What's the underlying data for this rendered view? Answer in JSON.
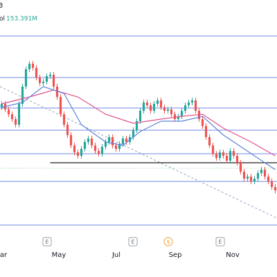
{
  "chart_data": {
    "type": "candlestick",
    "header": "3",
    "volume_prefix": "ol",
    "volume_value": "153.391M",
    "xlim": [
      -0.5,
      79.5
    ],
    "ylim": [
      0,
      350
    ],
    "up_color": "#26a69a",
    "down_color": "#ef5350",
    "open": [
      195,
      200,
      192,
      185,
      178,
      170,
      200,
      225,
      250,
      258,
      252,
      238,
      230,
      232,
      240,
      242,
      225,
      210,
      185,
      170,
      155,
      140,
      130,
      125,
      135,
      145,
      150,
      140,
      132,
      128,
      138,
      145,
      152,
      140,
      135,
      142,
      150,
      145,
      152,
      162,
      175,
      190,
      202,
      198,
      190,
      200,
      205,
      195,
      190,
      192,
      185,
      178,
      182,
      190,
      198,
      202,
      205,
      190,
      178,
      168,
      152,
      140,
      128,
      122,
      130,
      125,
      118,
      132,
      125,
      115,
      102,
      92,
      95,
      88,
      92,
      100,
      105,
      95,
      88,
      80
    ],
    "high": [
      204,
      204,
      196,
      189,
      182,
      204,
      229,
      254,
      262,
      262,
      256,
      242,
      236,
      244,
      246,
      246,
      229,
      214,
      189,
      174,
      159,
      144,
      134,
      139,
      149,
      154,
      154,
      144,
      136,
      142,
      149,
      156,
      156,
      144,
      146,
      154,
      154,
      156,
      166,
      179,
      194,
      206,
      206,
      202,
      204,
      209,
      209,
      199,
      196,
      196,
      189,
      186,
      194,
      202,
      206,
      209,
      209,
      194,
      182,
      172,
      156,
      144,
      132,
      134,
      134,
      129,
      136,
      136,
      129,
      119,
      106,
      99,
      99,
      96,
      104,
      109,
      109,
      99,
      92,
      84
    ],
    "low": [
      191,
      188,
      181,
      174,
      166,
      166,
      196,
      221,
      246,
      248,
      234,
      226,
      226,
      228,
      236,
      221,
      206,
      181,
      166,
      151,
      136,
      126,
      121,
      121,
      131,
      141,
      136,
      128,
      124,
      124,
      134,
      141,
      136,
      131,
      131,
      138,
      141,
      141,
      148,
      158,
      171,
      186,
      194,
      186,
      186,
      196,
      191,
      186,
      186,
      181,
      174,
      174,
      178,
      186,
      194,
      198,
      186,
      174,
      164,
      148,
      136,
      124,
      118,
      118,
      121,
      114,
      114,
      121,
      111,
      98,
      88,
      88,
      84,
      84,
      88,
      96,
      91,
      84,
      76,
      71
    ],
    "close": [
      200,
      192,
      185,
      178,
      170,
      200,
      225,
      250,
      258,
      252,
      238,
      230,
      232,
      240,
      242,
      225,
      210,
      185,
      170,
      155,
      140,
      130,
      125,
      135,
      145,
      150,
      140,
      132,
      128,
      138,
      145,
      152,
      140,
      135,
      142,
      150,
      145,
      152,
      162,
      175,
      190,
      202,
      198,
      190,
      200,
      205,
      195,
      190,
      192,
      185,
      178,
      182,
      190,
      198,
      202,
      205,
      190,
      178,
      168,
      152,
      140,
      128,
      122,
      130,
      125,
      118,
      132,
      125,
      115,
      102,
      92,
      95,
      88,
      92,
      100,
      105,
      95,
      88,
      80,
      75
    ],
    "ma_lines": [
      {
        "color": "#e0508e",
        "x": [
          0,
          8,
          15,
          22,
          30,
          38,
          46,
          52,
          58,
          64,
          72,
          79
        ],
        "values": [
          200,
          210,
          220,
          210,
          185,
          172,
          178,
          182,
          185,
          165,
          145,
          125
        ]
      },
      {
        "color": "#5b82d9",
        "x": [
          0,
          6,
          12,
          18,
          23,
          30,
          35,
          40,
          46,
          52,
          58,
          64,
          70,
          76,
          79
        ],
        "values": [
          195,
          202,
          225,
          215,
          170,
          145,
          140,
          160,
          175,
          175,
          182,
          155,
          135,
          115,
          105
        ]
      }
    ],
    "levels": [
      298,
      238,
      194,
      162,
      128,
      88,
      25
    ],
    "level_color": "#7088e6",
    "support": {
      "x": [
        14,
        79.5
      ],
      "value": 115,
      "color": "#222222"
    },
    "dotted": {
      "value": 107,
      "color": "#9ccf9c"
    },
    "trendline": {
      "x": [
        -0.5,
        79.5
      ],
      "values": [
        225,
        35
      ],
      "color": "#8f9fc0"
    },
    "xticks": [
      {
        "value": 0.5,
        "label": "ar"
      },
      {
        "value": 16.5,
        "label": "May"
      },
      {
        "value": 33.1,
        "label": "Jul"
      },
      {
        "value": 50.1,
        "label": "Sep"
      },
      {
        "value": 66.7,
        "label": "Nov"
      }
    ],
    "events": [
      {
        "x": 13.1,
        "label": "E"
      },
      {
        "x": 37.9,
        "label": "E"
      },
      {
        "x": 48.1,
        "label": "$"
      },
      {
        "x": 63.1,
        "label": "E"
      }
    ]
  }
}
